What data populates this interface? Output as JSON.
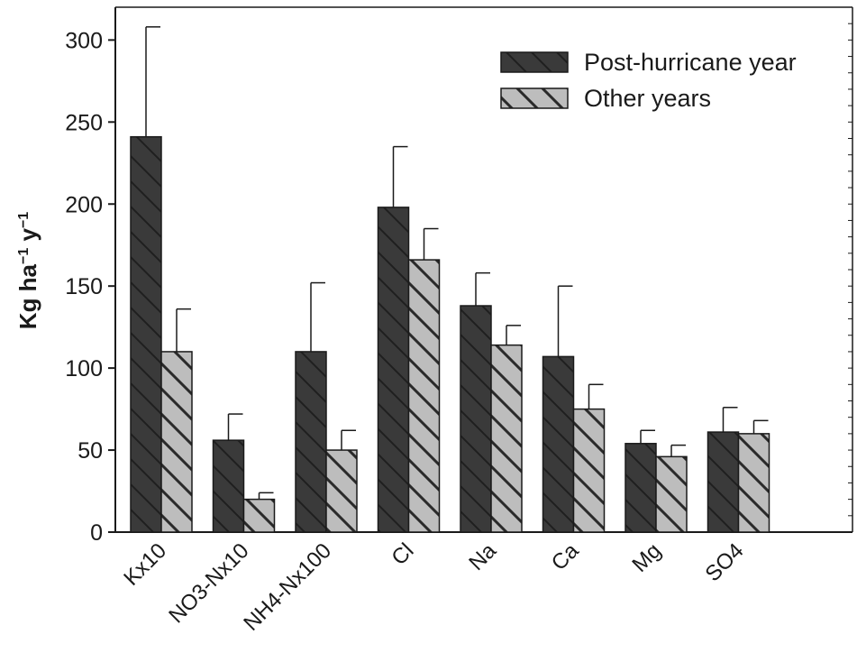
{
  "chart_data": {
    "type": "bar",
    "xlabel": "",
    "ylabel": {
      "parts": [
        {
          "text": "Kg ha",
          "sup": false
        },
        {
          "text": "−1",
          "sup": true
        },
        {
          "text": " y",
          "sup": false
        },
        {
          "text": "−1",
          "sup": true
        }
      ]
    },
    "ylim": [
      0,
      320
    ],
    "yticks": [
      0,
      50,
      100,
      150,
      200,
      250,
      300
    ],
    "categories": [
      "Kx10",
      "NO3-Nx10",
      "NH4-Nx100",
      "Cl",
      "Na",
      "Ca",
      "Mg",
      "SO4"
    ],
    "series": [
      {
        "name": "Post-hurricane year",
        "color": "#3a3a3a",
        "hatch_color": "#1f1f1f",
        "values": [
          241,
          56,
          110,
          198,
          138,
          107,
          54,
          61
        ],
        "error_upper": [
          308,
          72,
          152,
          235,
          158,
          150,
          62,
          76
        ]
      },
      {
        "name": "Other years",
        "color": "#bdbdbd",
        "hatch_color": "#2a2a2a",
        "values": [
          110,
          20,
          50,
          166,
          114,
          75,
          46,
          60
        ],
        "error_upper": [
          136,
          24,
          62,
          185,
          126,
          90,
          53,
          68
        ]
      }
    ],
    "legend_position": "top-right",
    "grid": false
  }
}
